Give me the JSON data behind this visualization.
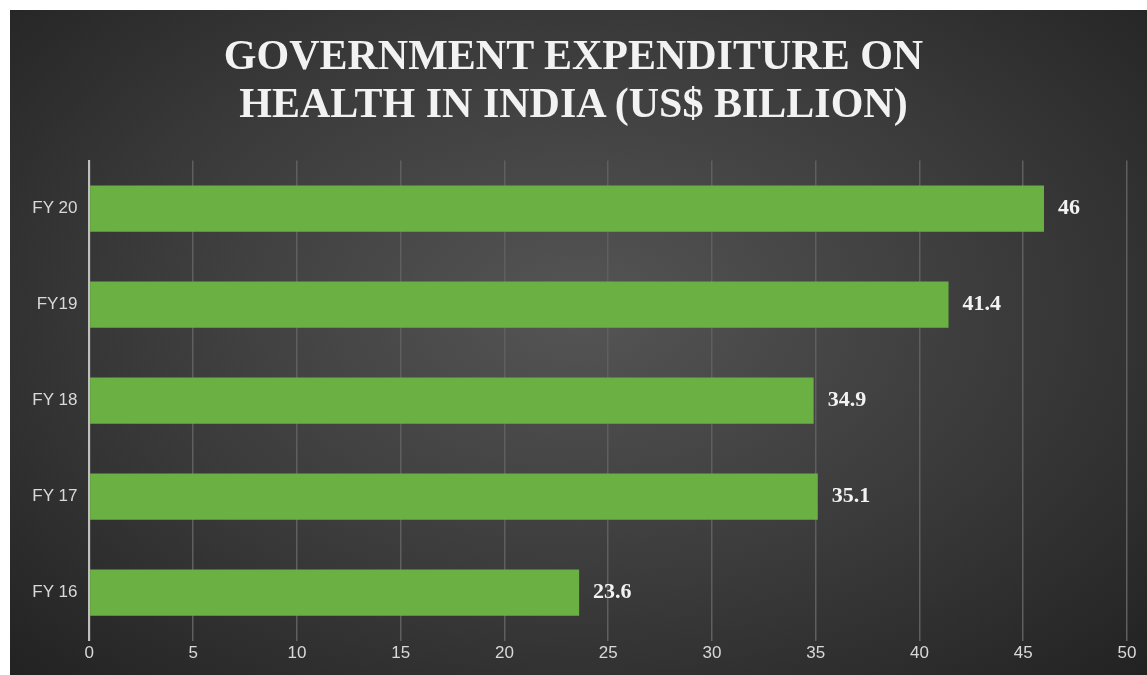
{
  "chart_data": {
    "type": "bar",
    "orientation": "horizontal",
    "title": "GOVERNMENT EXPENDITURE ON HEALTH IN INDIA (US$ BILLION)",
    "categories": [
      "FY 20",
      "FY19",
      "FY 18",
      "FY 17",
      "FY 16"
    ],
    "values": [
      46,
      41.4,
      34.9,
      35.1,
      23.6
    ],
    "color": "#6ab042",
    "xlim": [
      0,
      50
    ],
    "xticks": [
      0,
      5,
      10,
      15,
      20,
      25,
      30,
      35,
      40,
      45,
      50
    ],
    "grid": "x",
    "data_labels": true,
    "legend": false
  }
}
